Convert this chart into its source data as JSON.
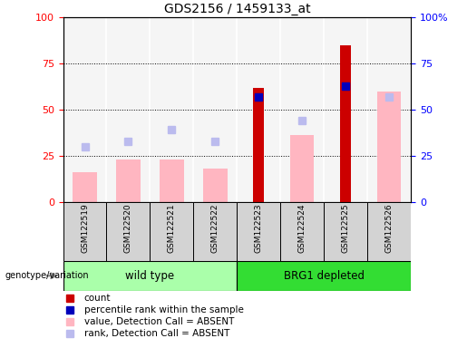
{
  "title": "GDS2156 / 1459133_at",
  "samples": [
    "GSM122519",
    "GSM122520",
    "GSM122521",
    "GSM122522",
    "GSM122523",
    "GSM122524",
    "GSM122525",
    "GSM122526"
  ],
  "group_wt_label": "wild type",
  "group_wt_color": "#AAFFAA",
  "group_brg_label": "BRG1 depleted",
  "group_brg_color": "#33DD33",
  "count": [
    null,
    null,
    null,
    null,
    62,
    null,
    85,
    null
  ],
  "percentile_rank": [
    null,
    null,
    null,
    null,
    57,
    null,
    63,
    null
  ],
  "value_absent": [
    16,
    23,
    23,
    18,
    null,
    36,
    null,
    60
  ],
  "rank_absent": [
    30,
    33,
    39,
    33,
    null,
    44,
    null,
    57
  ],
  "ylim_min": 0,
  "ylim_max": 100,
  "y_ticks": [
    0,
    25,
    50,
    75,
    100
  ],
  "count_color": "#CC0000",
  "percentile_color": "#0000BB",
  "value_absent_color": "#FFB6C1",
  "rank_absent_color": "#BBBBEE",
  "bg_color": "#FFFFFF",
  "plot_bg": "#F5F5F5",
  "sample_box_bg": "#D3D3D3",
  "legend_items": [
    {
      "color": "#CC0000",
      "label": "count"
    },
    {
      "color": "#0000BB",
      "label": "percentile rank within the sample"
    },
    {
      "color": "#FFB6C1",
      "label": "value, Detection Call = ABSENT"
    },
    {
      "color": "#BBBBEE",
      "label": "rank, Detection Call = ABSENT"
    }
  ]
}
